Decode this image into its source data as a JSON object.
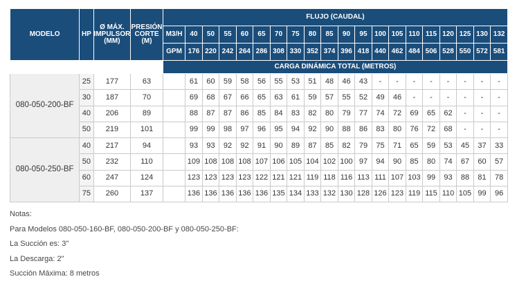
{
  "header": {
    "modelo": "MODELO",
    "hp": "HP",
    "impulsor": [
      "Ø MÁX.",
      "IMPULSOR",
      "(MM)"
    ],
    "presion": [
      "PRESIÓN",
      "CORTE",
      "(M)"
    ],
    "flujo": "FLUJO (CAUDAL)",
    "m3h_label": "M3/H",
    "gpm_label": "GPM",
    "carga": "CARGA DINÁMICA TOTAL (METROS)",
    "m3h": [
      "40",
      "50",
      "55",
      "60",
      "65",
      "70",
      "75",
      "80",
      "85",
      "90",
      "95",
      "100",
      "105",
      "110",
      "115",
      "120",
      "125",
      "130",
      "132"
    ],
    "gpm": [
      "176",
      "220",
      "242",
      "264",
      "286",
      "308",
      "330",
      "352",
      "374",
      "396",
      "418",
      "440",
      "462",
      "484",
      "506",
      "528",
      "550",
      "572",
      "581"
    ]
  },
  "groups": [
    {
      "model": "080-050-200-BF",
      "rows": [
        {
          "hp": "25",
          "imp": "177",
          "pres": "63",
          "vals": [
            "61",
            "60",
            "59",
            "58",
            "56",
            "55",
            "53",
            "51",
            "48",
            "46",
            "43",
            "-",
            "-",
            "-",
            "-",
            "-",
            "-",
            "-",
            "-"
          ]
        },
        {
          "hp": "30",
          "imp": "187",
          "pres": "70",
          "vals": [
            "69",
            "68",
            "67",
            "66",
            "65",
            "63",
            "61",
            "59",
            "57",
            "55",
            "52",
            "49",
            "46",
            "-",
            "-",
            "-",
            "-",
            "-",
            "-"
          ]
        },
        {
          "hp": "40",
          "imp": "206",
          "pres": "89",
          "vals": [
            "88",
            "87",
            "87",
            "86",
            "85",
            "84",
            "83",
            "82",
            "80",
            "79",
            "77",
            "74",
            "72",
            "69",
            "65",
            "62",
            "-",
            "-",
            "-"
          ]
        },
        {
          "hp": "50",
          "imp": "219",
          "pres": "101",
          "vals": [
            "99",
            "99",
            "98",
            "97",
            "96",
            "95",
            "94",
            "92",
            "90",
            "88",
            "86",
            "83",
            "80",
            "76",
            "72",
            "68",
            "-",
            "-",
            "-"
          ]
        }
      ]
    },
    {
      "model": "080-050-250-BF",
      "rows": [
        {
          "hp": "40",
          "imp": "217",
          "pres": "94",
          "vals": [
            "93",
            "93",
            "92",
            "92",
            "91",
            "90",
            "89",
            "87",
            "85",
            "82",
            "79",
            "75",
            "71",
            "65",
            "59",
            "53",
            "45",
            "37",
            "33"
          ]
        },
        {
          "hp": "50",
          "imp": "232",
          "pres": "110",
          "vals": [
            "109",
            "108",
            "108",
            "108",
            "107",
            "106",
            "105",
            "104",
            "102",
            "100",
            "97",
            "94",
            "90",
            "85",
            "80",
            "74",
            "67",
            "60",
            "57"
          ]
        },
        {
          "hp": "60",
          "imp": "247",
          "pres": "124",
          "vals": [
            "123",
            "123",
            "123",
            "123",
            "122",
            "121",
            "121",
            "119",
            "118",
            "116",
            "113",
            "111",
            "107",
            "103",
            "99",
            "93",
            "88",
            "81",
            "78"
          ]
        },
        {
          "hp": "75",
          "imp": "260",
          "pres": "137",
          "vals": [
            "136",
            "136",
            "136",
            "136",
            "136",
            "135",
            "134",
            "133",
            "132",
            "130",
            "128",
            "126",
            "123",
            "119",
            "115",
            "110",
            "105",
            "99",
            "96"
          ]
        }
      ]
    }
  ],
  "notes": [
    "Notas:",
    "Para Modelos 080-050-160-BF, 080-050-200-BF y 080-050-250-BF:",
    "La Succión es: 3\"",
    "La Descarga: 2\"",
    "Succión Máxima: 8 metros"
  ]
}
